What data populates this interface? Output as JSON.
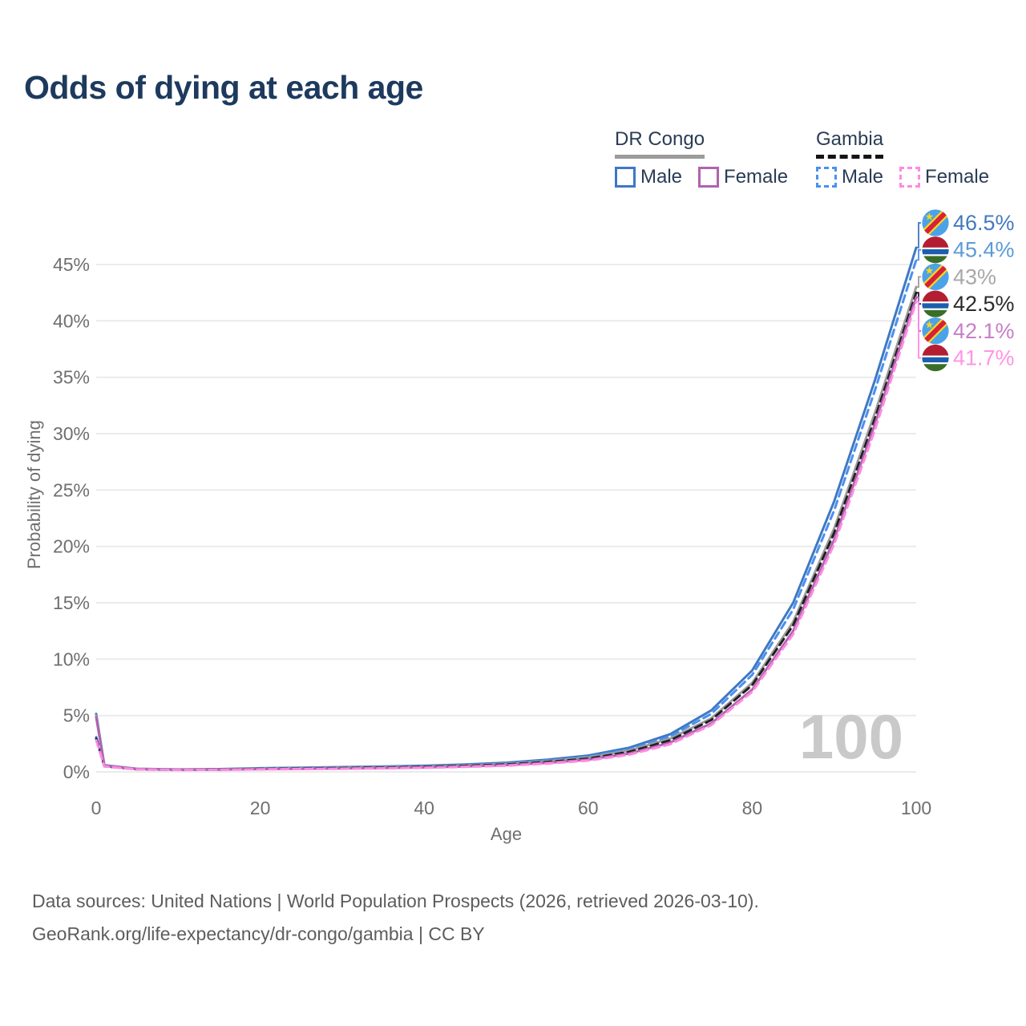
{
  "title": "Odds of dying at each age",
  "watermark": "100",
  "legend": {
    "groups": [
      {
        "label": "DR Congo",
        "underline_style": "solid",
        "underline_color": "#9b9b9b",
        "items": [
          {
            "label": "Male",
            "color": "#3E78C4",
            "dash": false
          },
          {
            "label": "Female",
            "color": "#B163AE",
            "dash": false
          }
        ]
      },
      {
        "label": "Gambia",
        "underline_style": "dashed",
        "underline_color": "#141414",
        "items": [
          {
            "label": "Male",
            "color": "#4A90F0",
            "dash": true
          },
          {
            "label": "Female",
            "color": "#FF8AE2",
            "dash": true
          }
        ]
      }
    ]
  },
  "footer": {
    "line1": "Data sources: United Nations | World Population Prospects (2026, retrieved 2026-03-10).",
    "line2": "GeoRank.org/life-expectancy/dr-congo/gambia | CC BY"
  },
  "chart_data": {
    "type": "line",
    "title": "Odds of dying at each age",
    "xlabel": "Age",
    "ylabel": "Probability of dying",
    "xlim": [
      0,
      100
    ],
    "ylim": [
      0,
      48
    ],
    "x_ticks": [
      0,
      20,
      40,
      60,
      80,
      100
    ],
    "y_ticks": [
      0,
      5,
      10,
      15,
      20,
      25,
      30,
      35,
      40,
      45
    ],
    "y_tick_suffix": "%",
    "grid": true,
    "legend_position": "top-right",
    "x": [
      0,
      1,
      5,
      10,
      15,
      20,
      25,
      30,
      35,
      40,
      45,
      50,
      55,
      60,
      65,
      70,
      75,
      80,
      85,
      90,
      95,
      100
    ],
    "series": [
      {
        "name": "DR Congo Male",
        "country": "DR Congo",
        "sex": "Male",
        "color": "#3E78C4",
        "label_color": "#4579BD",
        "dash": false,
        "flag": "cd",
        "end_label": "46.5%",
        "values": [
          5.15,
          0.6,
          0.28,
          0.22,
          0.25,
          0.33,
          0.38,
          0.43,
          0.48,
          0.55,
          0.66,
          0.82,
          1.08,
          1.45,
          2.15,
          3.35,
          5.45,
          9.0,
          15.0,
          24.0,
          34.8,
          46.5
        ]
      },
      {
        "name": "Gambia Male",
        "country": "Gambia",
        "sex": "Male",
        "color": "#4A90F0",
        "label_color": "#5B9BD8",
        "dash": true,
        "flag": "gm",
        "end_label": "45.4%",
        "values": [
          3.1,
          0.52,
          0.24,
          0.19,
          0.22,
          0.3,
          0.34,
          0.39,
          0.44,
          0.5,
          0.6,
          0.75,
          1.0,
          1.35,
          2.0,
          3.15,
          5.15,
          8.6,
          14.4,
          23.2,
          33.9,
          45.4
        ]
      },
      {
        "name": "DR Congo",
        "country": "DR Congo",
        "sex": "Both",
        "color": "#9C9C9C",
        "label_color": "#A8A8A8",
        "dash": false,
        "flag": "cd",
        "end_label": "43%",
        "values": [
          5.0,
          0.57,
          0.26,
          0.2,
          0.22,
          0.28,
          0.32,
          0.36,
          0.41,
          0.47,
          0.57,
          0.71,
          0.94,
          1.27,
          1.9,
          2.95,
          4.75,
          7.9,
          13.3,
          21.6,
          31.9,
          43.0
        ]
      },
      {
        "name": "Gambia",
        "country": "Gambia",
        "sex": "Both",
        "color": "#1F1F1F",
        "label_color": "#2B2B2B",
        "dash": true,
        "flag": "gm",
        "end_label": "42.5%",
        "values": [
          2.95,
          0.5,
          0.23,
          0.18,
          0.2,
          0.26,
          0.3,
          0.34,
          0.38,
          0.44,
          0.53,
          0.66,
          0.88,
          1.18,
          1.78,
          2.8,
          4.6,
          7.7,
          13.0,
          21.2,
          31.4,
          42.5
        ]
      },
      {
        "name": "DR Congo Female",
        "country": "DR Congo",
        "sex": "Female",
        "color": "#B163AE",
        "label_color": "#C77FC7",
        "dash": false,
        "flag": "cd",
        "end_label": "42.1%",
        "values": [
          4.85,
          0.55,
          0.25,
          0.19,
          0.2,
          0.24,
          0.27,
          0.3,
          0.34,
          0.39,
          0.48,
          0.6,
          0.8,
          1.08,
          1.63,
          2.6,
          4.3,
          7.3,
          12.5,
          20.6,
          30.9,
          42.1
        ]
      },
      {
        "name": "Gambia Female",
        "country": "Gambia",
        "sex": "Female",
        "color": "#FF8AE2",
        "label_color": "#FF94E4",
        "dash": true,
        "flag": "gm",
        "end_label": "41.7%",
        "values": [
          2.8,
          0.48,
          0.22,
          0.17,
          0.18,
          0.22,
          0.25,
          0.28,
          0.31,
          0.36,
          0.44,
          0.55,
          0.74,
          1.0,
          1.52,
          2.45,
          4.15,
          7.1,
          12.2,
          20.2,
          30.4,
          41.7
        ]
      }
    ]
  }
}
